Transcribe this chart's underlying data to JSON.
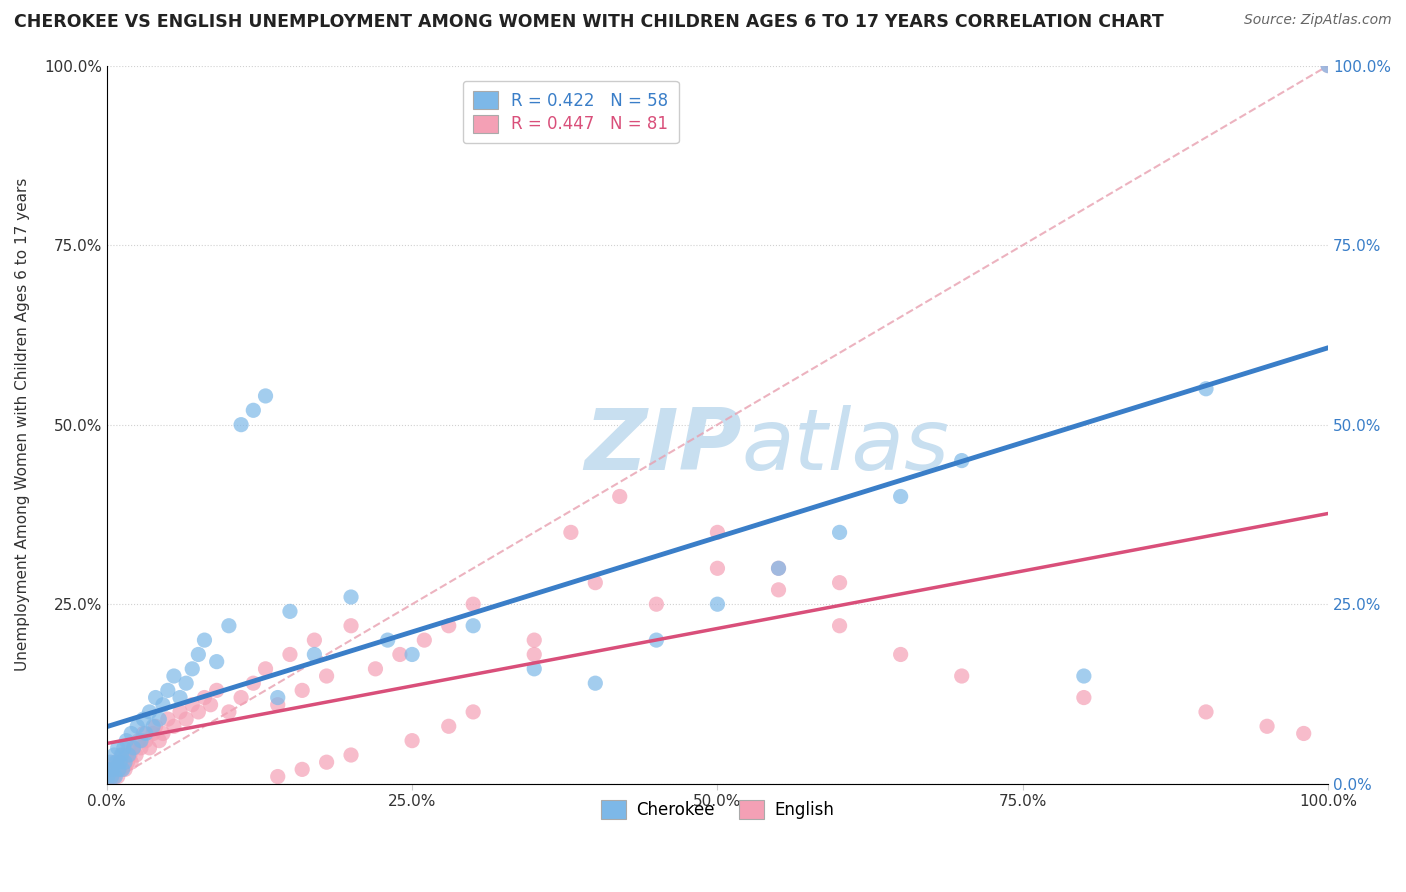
{
  "title": "CHEROKEE VS ENGLISH UNEMPLOYMENT AMONG WOMEN WITH CHILDREN AGES 6 TO 17 YEARS CORRELATION CHART",
  "source": "Source: ZipAtlas.com",
  "ylabel": "Unemployment Among Women with Children Ages 6 to 17 years",
  "cherokee_R": 0.422,
  "cherokee_N": 58,
  "english_R": 0.447,
  "english_N": 81,
  "cherokee_color": "#7db8e8",
  "english_color": "#f4a0b5",
  "cherokee_line_color": "#3a7ec8",
  "english_line_color": "#d94f7a",
  "watermark_color": "#c8dff0",
  "background_color": "#ffffff",
  "xlim": [
    0,
    1
  ],
  "ylim": [
    0,
    1
  ],
  "xticks": [
    0,
    0.25,
    0.5,
    0.75,
    1.0
  ],
  "yticks": [
    0,
    0.25,
    0.5,
    0.75,
    1.0
  ],
  "xticklabels": [
    "0.0%",
    "25.0%",
    "50.0%",
    "75.0%",
    "100.0%"
  ],
  "yticklabels_left": [
    "",
    "25.0%",
    "50.0%",
    "75.0%",
    "100.0%"
  ],
  "yticklabels_right": [
    "0.0%",
    "25.0%",
    "50.0%",
    "75.0%",
    "100.0%"
  ],
  "cherokee_x": [
    0.001,
    0.002,
    0.003,
    0.004,
    0.005,
    0.006,
    0.007,
    0.008,
    0.009,
    0.01,
    0.011,
    0.012,
    0.013,
    0.014,
    0.015,
    0.016,
    0.018,
    0.02,
    0.022,
    0.025,
    0.028,
    0.03,
    0.032,
    0.035,
    0.038,
    0.04,
    0.043,
    0.046,
    0.05,
    0.055,
    0.06,
    0.065,
    0.07,
    0.075,
    0.08,
    0.09,
    0.1,
    0.11,
    0.12,
    0.13,
    0.14,
    0.15,
    0.17,
    0.2,
    0.23,
    0.25,
    0.3,
    0.35,
    0.4,
    0.45,
    0.5,
    0.55,
    0.6,
    0.65,
    0.7,
    0.8,
    0.9,
    1.0
  ],
  "cherokee_y": [
    0.01,
    0.02,
    0.03,
    0.01,
    0.02,
    0.04,
    0.01,
    0.03,
    0.05,
    0.02,
    0.03,
    0.04,
    0.02,
    0.05,
    0.03,
    0.06,
    0.04,
    0.07,
    0.05,
    0.08,
    0.06,
    0.09,
    0.07,
    0.1,
    0.08,
    0.12,
    0.09,
    0.11,
    0.13,
    0.15,
    0.12,
    0.14,
    0.16,
    0.18,
    0.2,
    0.17,
    0.22,
    0.5,
    0.52,
    0.54,
    0.12,
    0.24,
    0.18,
    0.26,
    0.2,
    0.18,
    0.22,
    0.16,
    0.14,
    0.2,
    0.25,
    0.3,
    0.35,
    0.4,
    0.45,
    0.15,
    0.55,
    1.0
  ],
  "english_x": [
    0.001,
    0.002,
    0.003,
    0.004,
    0.005,
    0.006,
    0.007,
    0.008,
    0.009,
    0.01,
    0.011,
    0.012,
    0.013,
    0.014,
    0.015,
    0.016,
    0.017,
    0.018,
    0.019,
    0.02,
    0.022,
    0.024,
    0.026,
    0.028,
    0.03,
    0.032,
    0.035,
    0.038,
    0.04,
    0.043,
    0.046,
    0.05,
    0.055,
    0.06,
    0.065,
    0.07,
    0.075,
    0.08,
    0.085,
    0.09,
    0.1,
    0.11,
    0.12,
    0.13,
    0.14,
    0.15,
    0.16,
    0.17,
    0.18,
    0.2,
    0.22,
    0.24,
    0.26,
    0.28,
    0.3,
    0.35,
    0.4,
    0.45,
    0.5,
    0.55,
    0.6,
    0.65,
    0.7,
    0.8,
    0.9,
    0.95,
    0.98,
    1.0,
    0.5,
    0.55,
    0.6,
    0.42,
    0.38,
    0.35,
    0.3,
    0.28,
    0.25,
    0.2,
    0.18,
    0.16,
    0.14
  ],
  "english_y": [
    0.01,
    0.01,
    0.02,
    0.01,
    0.02,
    0.01,
    0.03,
    0.02,
    0.01,
    0.02,
    0.03,
    0.02,
    0.04,
    0.03,
    0.02,
    0.04,
    0.03,
    0.05,
    0.04,
    0.03,
    0.05,
    0.04,
    0.06,
    0.05,
    0.07,
    0.06,
    0.05,
    0.07,
    0.08,
    0.06,
    0.07,
    0.09,
    0.08,
    0.1,
    0.09,
    0.11,
    0.1,
    0.12,
    0.11,
    0.13,
    0.1,
    0.12,
    0.14,
    0.16,
    0.11,
    0.18,
    0.13,
    0.2,
    0.15,
    0.22,
    0.16,
    0.18,
    0.2,
    0.22,
    0.25,
    0.2,
    0.28,
    0.25,
    0.3,
    0.27,
    0.22,
    0.18,
    0.15,
    0.12,
    0.1,
    0.08,
    0.07,
    1.0,
    0.35,
    0.3,
    0.28,
    0.4,
    0.35,
    0.18,
    0.1,
    0.08,
    0.06,
    0.04,
    0.03,
    0.02,
    0.01
  ]
}
